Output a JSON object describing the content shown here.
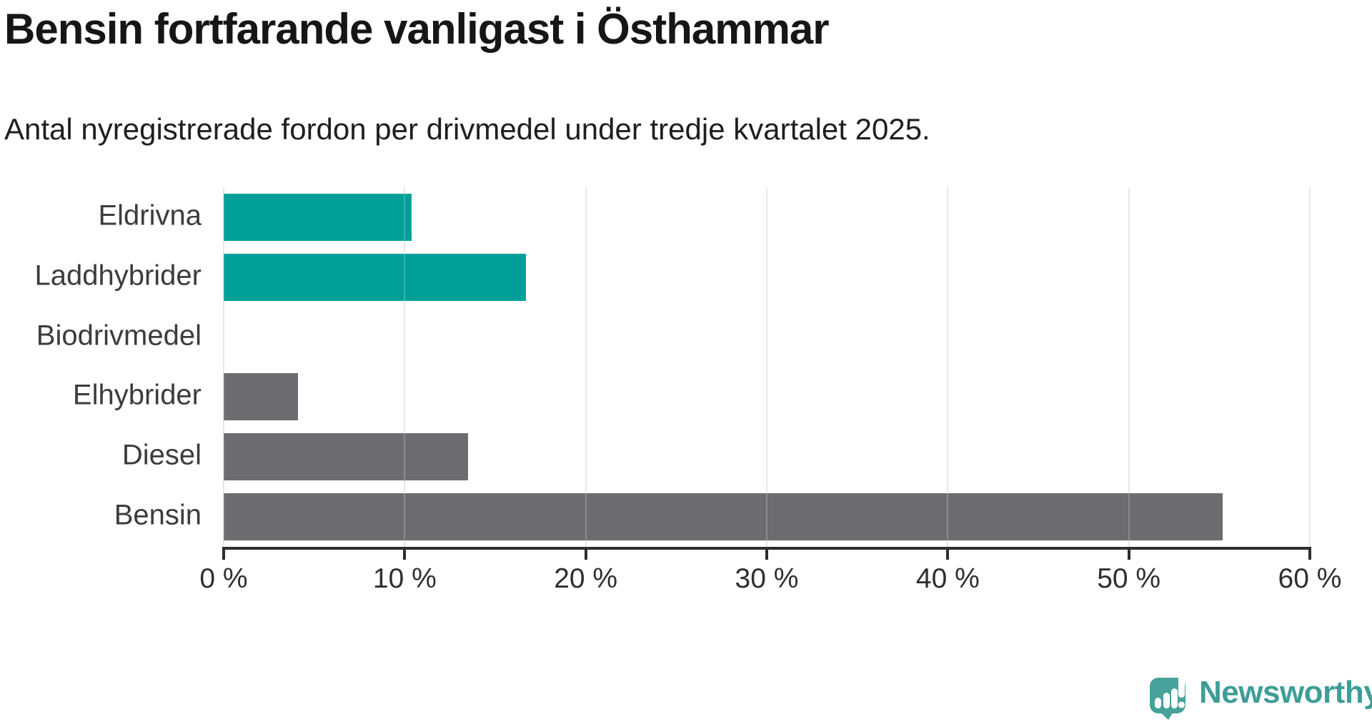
{
  "chart_data": {
    "type": "bar",
    "orientation": "horizontal",
    "title": "Bensin fortfarande vanligast i Östhammar",
    "subtitle": "Antal nyregistrerade fordon per drivmedel under tredje kvartalet 2025.",
    "categories": [
      "Eldrivna",
      "Laddhybrider",
      "Biodrivmedel",
      "Elhybrider",
      "Diesel",
      "Bensin"
    ],
    "values": [
      10.4,
      16.7,
      0,
      4.1,
      13.5,
      55.2
    ],
    "unit": "%",
    "bar_colors": [
      "#00a099",
      "#00a099",
      "#00a099",
      "#6c6c71",
      "#6c6c71",
      "#6c6c71"
    ],
    "accent_teal": "#00a099",
    "neutral_gray": "#6c6c71",
    "xlim": [
      0,
      60
    ],
    "x_ticks": [
      0,
      10,
      20,
      30,
      40,
      50,
      60
    ],
    "x_tick_labels": [
      "0 %",
      "10 %",
      "20 %",
      "30 %",
      "40 %",
      "50 %",
      "60 %"
    ],
    "grid": true,
    "legend": "none",
    "gridline_color": "#e1e1e1"
  },
  "branding": {
    "logo_text": "Newsworthy",
    "logo_color": "#3f9d97",
    "icon_color": "#46a29b"
  }
}
